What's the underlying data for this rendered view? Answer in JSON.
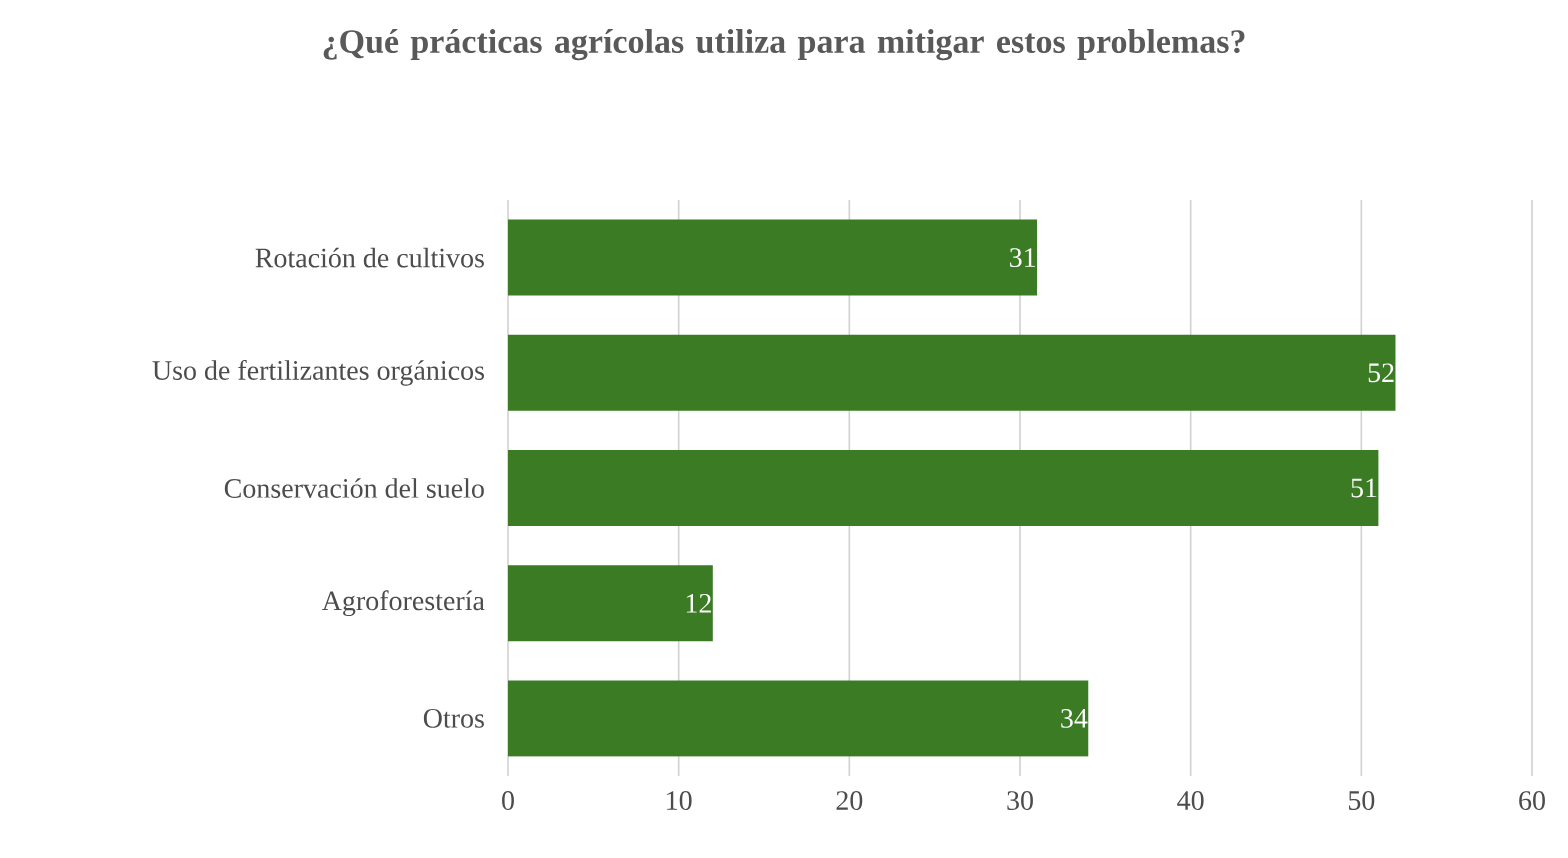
{
  "chart_data": {
    "type": "bar",
    "orientation": "horizontal",
    "title": "¿Qué prácticas agrícolas utiliza para mitigar estos problemas?",
    "categories": [
      "Rotación de cultivos",
      "Uso de fertilizantes orgánicos",
      "Conservación del suelo",
      "Agroforestería",
      "Otros"
    ],
    "values": [
      31,
      52,
      51,
      12,
      34
    ],
    "color": "#3a7b24",
    "xlim": [
      0,
      60
    ],
    "xticks": [
      0,
      10,
      20,
      30,
      40,
      50,
      60
    ],
    "grid": "x",
    "data_labels": true
  }
}
